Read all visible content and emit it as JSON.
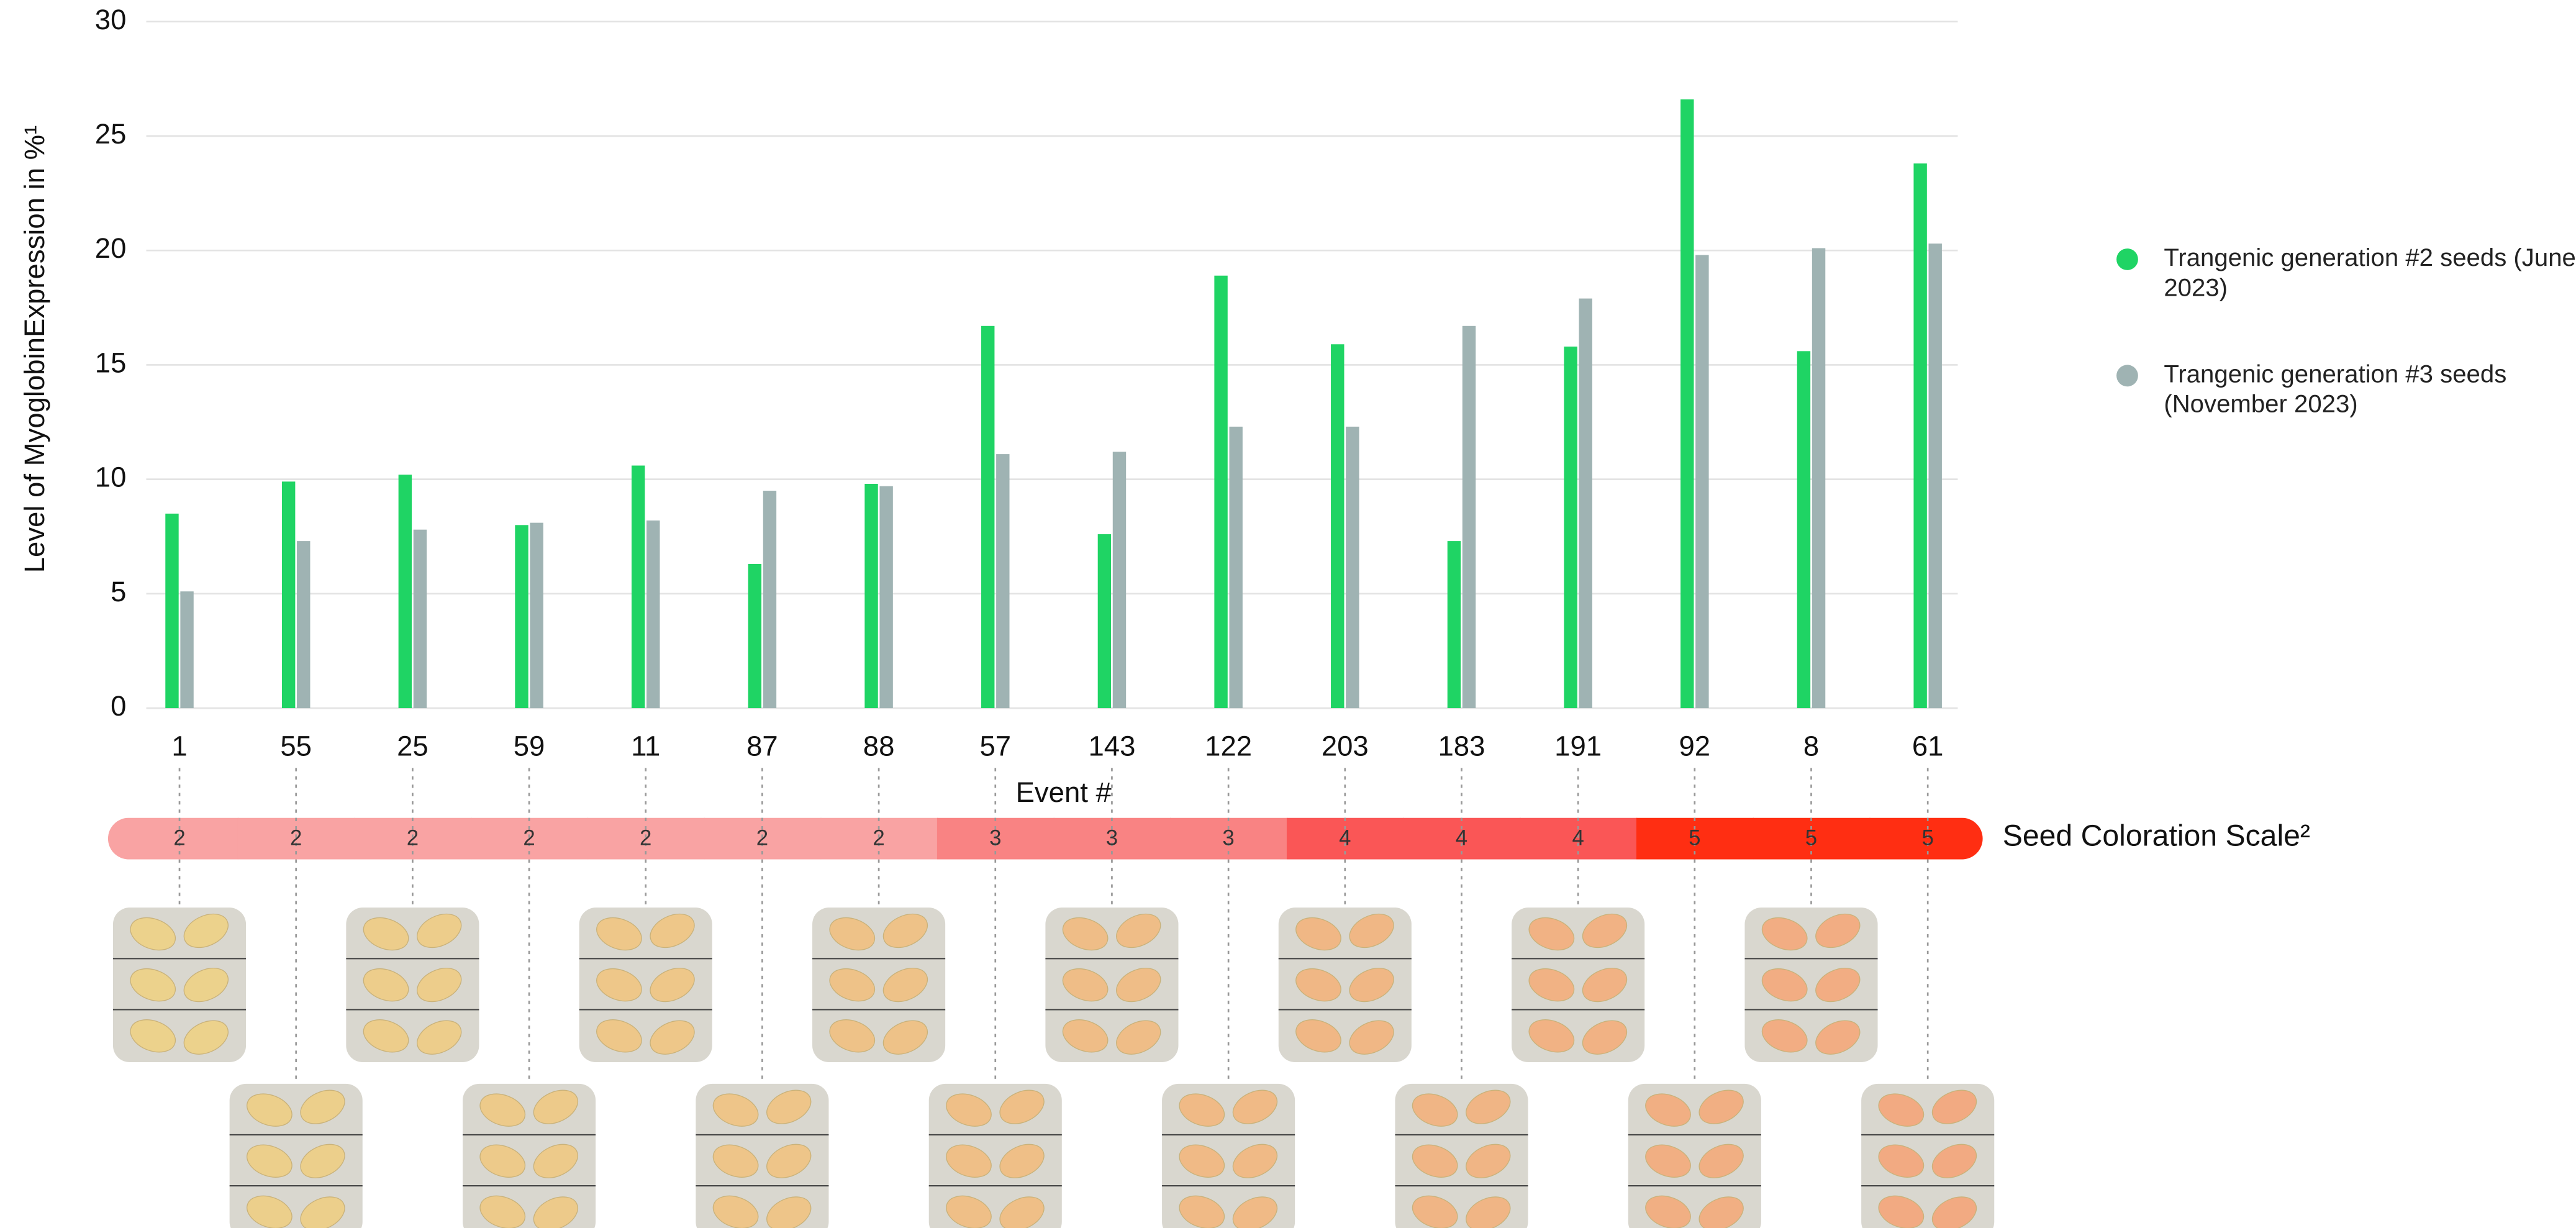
{
  "chart_data": {
    "type": "bar",
    "y_label": "Level of MyoglobinExpression in %¹",
    "x_label": "Event #",
    "categories": [
      "1",
      "55",
      "25",
      "59",
      "11",
      "87",
      "88",
      "57",
      "143",
      "122",
      "203",
      "183",
      "191",
      "92",
      "8",
      "61"
    ],
    "series": [
      {
        "name": "Trangenic generation #2 seeds (June 2023)",
        "color": "#1fd464",
        "values": [
          8.5,
          9.9,
          10.2,
          8.0,
          10.6,
          6.3,
          9.8,
          16.7,
          7.6,
          18.9,
          15.9,
          7.3,
          15.8,
          26.6,
          15.6,
          23.8
        ]
      },
      {
        "name": "Trangenic generation #3 seeds (November 2023)",
        "color": "#9fb3b3",
        "values": [
          5.1,
          7.3,
          7.8,
          8.1,
          8.2,
          9.5,
          9.7,
          11.1,
          11.2,
          12.3,
          12.3,
          16.7,
          17.9,
          19.8,
          20.1,
          20.3
        ]
      }
    ],
    "ylim": [
      0,
      30
    ],
    "yticks": [
      0,
      5,
      10,
      15,
      20,
      25,
      30
    ],
    "grid": true,
    "legend": "right",
    "coloration_label": "Seed Coloration Scale²",
    "coloration": [
      2,
      2,
      2,
      2,
      2,
      2,
      2,
      3,
      3,
      3,
      4,
      4,
      4,
      5,
      5,
      5
    ],
    "coloration_colors": {
      "2": "#f9a3a3",
      "3": "#f98383",
      "4": "#fa5656",
      "5": "#ff2e12"
    }
  }
}
